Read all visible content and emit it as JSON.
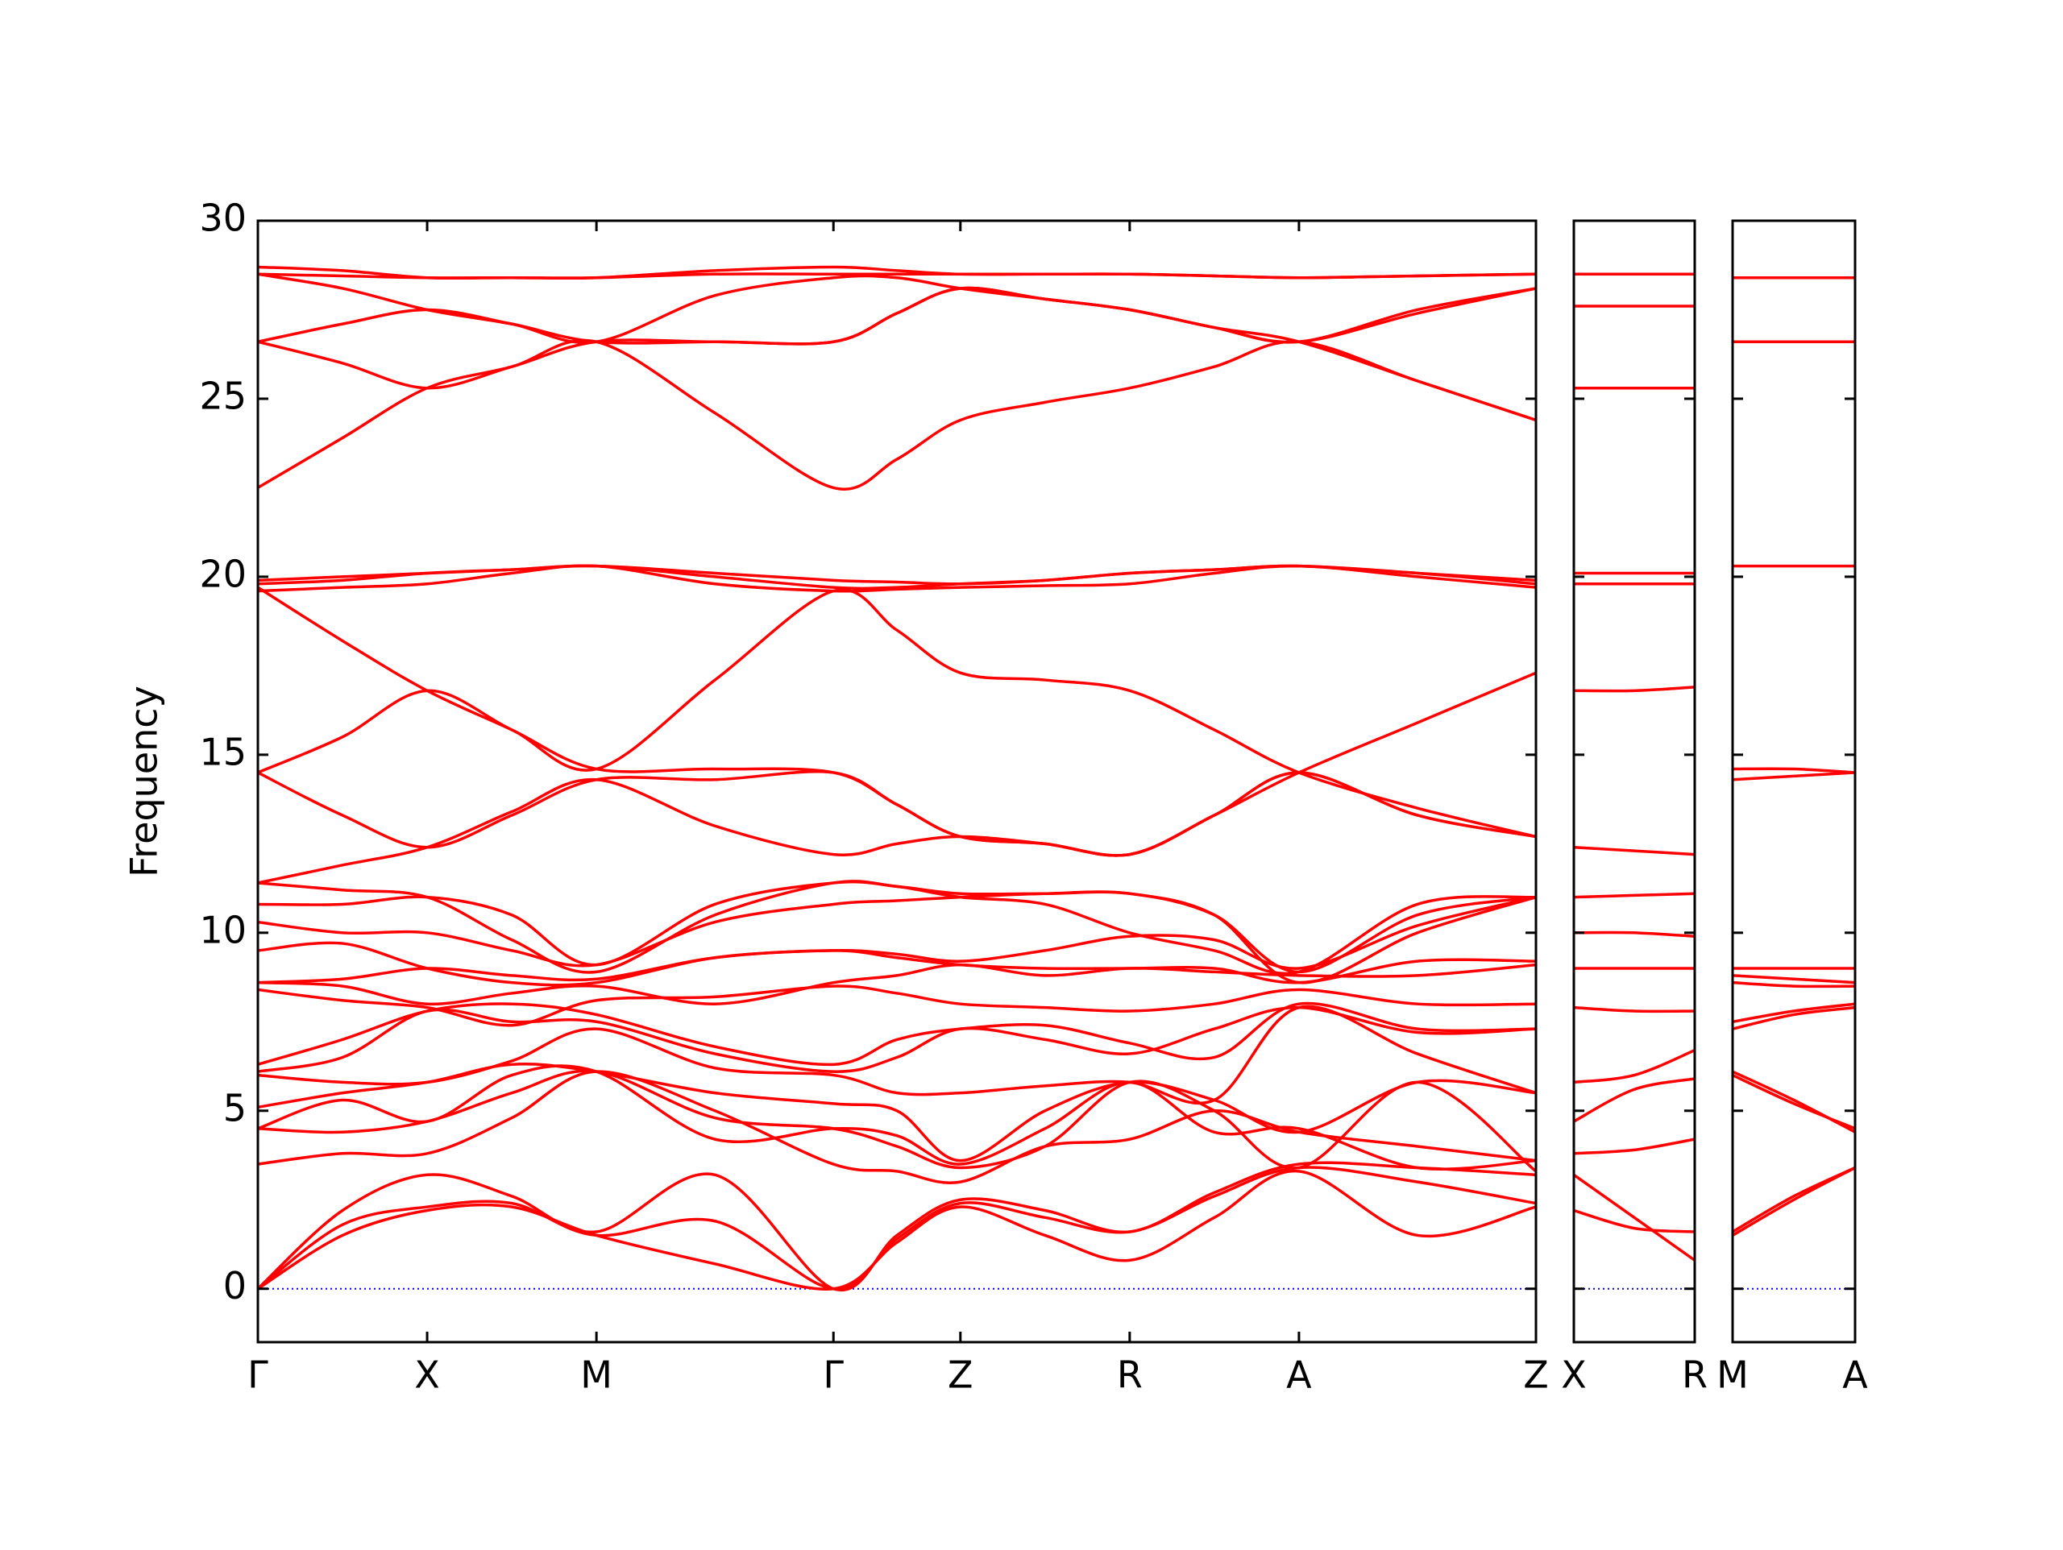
{
  "chart_data": [
    {
      "type": "line",
      "ylabel": "Frequency",
      "color": "#ff0000",
      "zero_line_color": "#0000ff",
      "xlim": [
        0,
        7.55
      ],
      "ylim": [
        -1.5,
        30
      ],
      "yticks": [
        0,
        5,
        10,
        15,
        20,
        25,
        30
      ],
      "ytick_labels": true,
      "xticks": [
        {
          "value": 0,
          "label": "Γ"
        },
        {
          "value": 1,
          "label": "X"
        },
        {
          "value": 2,
          "label": "M"
        },
        {
          "value": 3.4,
          "label": "Γ"
        },
        {
          "value": 4.15,
          "label": "Z"
        },
        {
          "value": 5.15,
          "label": "R"
        },
        {
          "value": 6.15,
          "label": "A"
        },
        {
          "value": 7.55,
          "label": "Z"
        }
      ],
      "x": [
        0,
        0.5,
        1,
        1.5,
        2,
        2.7,
        3.4,
        3.775,
        4.15,
        4.65,
        5.15,
        5.65,
        6.15,
        6.85,
        7.55
      ],
      "series": [
        {
          "values": [
            0,
            1.5,
            2.2,
            2.3,
            1.5,
            0.7,
            0,
            1.3,
            2.3,
            1.5,
            0.8,
            2.0,
            3.3,
            1.5,
            2.3
          ]
        },
        {
          "values": [
            0,
            1.8,
            2.3,
            2.4,
            1.5,
            1.9,
            0,
            1.4,
            2.4,
            2.0,
            1.6,
            2.6,
            3.4,
            3.0,
            2.4
          ]
        },
        {
          "values": [
            0,
            2.2,
            3.2,
            2.6,
            1.6,
            3.2,
            0,
            1.5,
            2.5,
            2.2,
            1.6,
            2.7,
            3.5,
            3.4,
            3.2
          ]
        },
        {
          "values": [
            3.5,
            3.8,
            3.8,
            4.8,
            6.1,
            5.0,
            3.5,
            3.3,
            3.0,
            4.0,
            4.2,
            5.0,
            4.4,
            4.0,
            3.6
          ]
        },
        {
          "values": [
            4.5,
            4.4,
            4.7,
            5.5,
            6.1,
            4.8,
            4.5,
            4.0,
            3.4,
            4.0,
            5.8,
            5.0,
            3.4,
            5.8,
            3.3
          ]
        },
        {
          "values": [
            4.5,
            5.3,
            4.7,
            6.0,
            6.1,
            4.2,
            4.5,
            4.3,
            3.5,
            4.5,
            5.8,
            4.4,
            4.5,
            3.4,
            3.6
          ]
        },
        {
          "values": [
            5.1,
            5.5,
            5.8,
            6.3,
            6.1,
            5.5,
            5.2,
            5.0,
            3.6,
            5.0,
            5.8,
            5.3,
            4.4,
            5.8,
            5.5
          ]
        },
        {
          "values": [
            6.0,
            5.8,
            5.8,
            6.4,
            7.3,
            6.2,
            6.0,
            5.5,
            5.5,
            5.7,
            5.8,
            5.3,
            7.9,
            6.6,
            5.5
          ]
        },
        {
          "values": [
            6.1,
            6.5,
            7.8,
            7.5,
            7.5,
            6.6,
            6.1,
            6.5,
            7.3,
            7.0,
            6.6,
            7.3,
            7.9,
            7.2,
            7.3
          ]
        },
        {
          "values": [
            6.3,
            7.0,
            7.8,
            8.0,
            7.7,
            6.8,
            6.3,
            7.0,
            7.3,
            7.4,
            6.9,
            6.5,
            8.0,
            7.3,
            7.3
          ]
        },
        {
          "values": [
            8.4,
            8.1,
            7.9,
            7.4,
            8.1,
            8.2,
            8.5,
            8.3,
            8.0,
            7.9,
            7.8,
            8.0,
            8.4,
            8.0,
            8.0
          ]
        },
        {
          "values": [
            8.6,
            8.5,
            8.0,
            8.3,
            8.5,
            8.0,
            8.6,
            8.8,
            9.1,
            8.8,
            9.0,
            8.9,
            8.8,
            8.8,
            9.1
          ]
        },
        {
          "values": [
            8.6,
            8.7,
            9.0,
            8.8,
            8.7,
            9.3,
            9.5,
            9.3,
            9.1,
            9.0,
            9.0,
            9.0,
            8.6,
            9.2,
            9.2
          ]
        },
        {
          "values": [
            9.5,
            9.7,
            9.0,
            8.6,
            8.6,
            9.3,
            9.5,
            9.4,
            9.2,
            9.5,
            9.9,
            9.8,
            9.0,
            10.2,
            11.0
          ]
        },
        {
          "values": [
            10.3,
            10.0,
            10.0,
            9.5,
            9.1,
            10.3,
            10.8,
            10.9,
            11.0,
            11.1,
            11.1,
            10.5,
            8.9,
            10.5,
            11.0
          ]
        },
        {
          "values": [
            10.8,
            10.8,
            11.0,
            10.5,
            9.1,
            10.8,
            11.4,
            11.3,
            11.0,
            10.8,
            10.0,
            9.5,
            8.9,
            10.8,
            11.0
          ]
        },
        {
          "values": [
            11.4,
            11.2,
            11.0,
            9.8,
            8.9,
            10.5,
            11.4,
            11.3,
            11.1,
            11.1,
            11.1,
            10.5,
            8.6,
            10.0,
            11.0
          ]
        },
        {
          "values": [
            11.4,
            11.9,
            12.4,
            13.4,
            14.3,
            13.0,
            12.2,
            12.5,
            12.7,
            12.5,
            12.2,
            13.3,
            14.5,
            13.3,
            12.7
          ]
        },
        {
          "values": [
            14.5,
            13.3,
            12.4,
            13.3,
            14.3,
            14.3,
            14.5,
            13.6,
            12.7,
            12.5,
            12.2,
            13.3,
            14.5,
            13.3,
            12.7
          ]
        },
        {
          "values": [
            14.5,
            15.5,
            16.8,
            15.7,
            14.6,
            14.6,
            14.5,
            13.6,
            12.7,
            12.5,
            12.2,
            13.3,
            14.5,
            15.9,
            17.3
          ]
        },
        {
          "values": [
            19.7,
            18.2,
            16.8,
            15.7,
            14.6,
            17.1,
            19.6,
            18.5,
            17.3,
            17.1,
            16.8,
            15.7,
            14.5,
            13.5,
            12.7
          ]
        },
        {
          "values": [
            19.6,
            19.7,
            19.8,
            20.1,
            20.3,
            19.8,
            19.6,
            19.65,
            19.7,
            19.75,
            19.8,
            20.1,
            20.3,
            20.0,
            19.7
          ]
        },
        {
          "values": [
            19.8,
            19.9,
            20.1,
            20.2,
            20.3,
            20.0,
            19.7,
            19.7,
            19.8,
            19.9,
            20.1,
            20.2,
            20.3,
            20.1,
            19.8
          ]
        },
        {
          "values": [
            19.9,
            20.0,
            20.1,
            20.2,
            20.3,
            20.1,
            19.9,
            19.85,
            19.8,
            19.9,
            20.1,
            20.2,
            20.3,
            20.1,
            19.9
          ]
        },
        {
          "values": [
            22.5,
            23.9,
            25.3,
            25.9,
            26.6,
            24.6,
            22.5,
            23.3,
            24.4,
            24.9,
            25.3,
            25.9,
            26.6,
            25.5,
            24.4
          ]
        },
        {
          "values": [
            26.6,
            26.0,
            25.3,
            25.9,
            26.6,
            26.6,
            26.6,
            27.4,
            28.1,
            27.8,
            27.5,
            27.0,
            26.6,
            27.4,
            28.1
          ]
        },
        {
          "values": [
            26.6,
            27.1,
            27.5,
            27.1,
            26.6,
            27.9,
            28.4,
            28.4,
            28.1,
            27.8,
            27.5,
            27.0,
            26.6,
            27.5,
            28.1
          ]
        },
        {
          "values": [
            28.5,
            28.1,
            27.5,
            27.1,
            26.6,
            26.6,
            26.6,
            27.4,
            28.1,
            27.8,
            27.5,
            27.0,
            26.6,
            25.5,
            24.4
          ]
        },
        {
          "values": [
            28.5,
            28.45,
            28.4,
            28.4,
            28.4,
            28.5,
            28.5,
            28.5,
            28.5,
            28.5,
            28.5,
            28.45,
            28.4,
            28.45,
            28.5
          ]
        },
        {
          "values": [
            28.7,
            28.6,
            28.4,
            28.4,
            28.4,
            28.6,
            28.7,
            28.6,
            28.5,
            28.5,
            28.5,
            28.45,
            28.4,
            28.45,
            28.5
          ]
        }
      ]
    },
    {
      "type": "line",
      "color": "#ff0000",
      "zero_line_color": "#0000ff",
      "xlim": [
        0,
        0.71
      ],
      "ylim": [
        -1.5,
        30
      ],
      "yticks": [
        0,
        5,
        10,
        15,
        20,
        25,
        30
      ],
      "ytick_labels": false,
      "xticks": [
        {
          "value": 0,
          "label": "X"
        },
        {
          "value": 0.71,
          "label": "R"
        }
      ],
      "x": [
        0,
        0.355,
        0.71
      ],
      "series": [
        {
          "values": [
            28.5,
            28.5,
            28.5
          ]
        },
        {
          "values": [
            27.6,
            27.6,
            27.6
          ]
        },
        {
          "values": [
            25.3,
            25.3,
            25.3
          ]
        },
        {
          "values": [
            20.1,
            20.1,
            20.1
          ]
        },
        {
          "values": [
            19.8,
            19.8,
            19.8
          ]
        },
        {
          "values": [
            16.8,
            16.8,
            16.9
          ]
        },
        {
          "values": [
            12.4,
            12.3,
            12.2
          ]
        },
        {
          "values": [
            11.0,
            11.05,
            11.1
          ]
        },
        {
          "values": [
            10.0,
            10.0,
            9.9
          ]
        },
        {
          "values": [
            9.0,
            9.0,
            9.0
          ]
        },
        {
          "values": [
            7.9,
            7.8,
            7.8
          ]
        },
        {
          "values": [
            5.8,
            6.0,
            6.7
          ]
        },
        {
          "values": [
            4.7,
            5.6,
            5.9
          ]
        },
        {
          "values": [
            3.8,
            3.9,
            4.2
          ]
        },
        {
          "values": [
            3.2,
            2.0,
            0.8
          ]
        },
        {
          "values": [
            2.2,
            1.7,
            1.6
          ]
        }
      ]
    },
    {
      "type": "line",
      "color": "#ff0000",
      "zero_line_color": "#0000ff",
      "xlim": [
        0,
        0.72
      ],
      "ylim": [
        -1.5,
        30
      ],
      "yticks": [
        0,
        5,
        10,
        15,
        20,
        25,
        30
      ],
      "ytick_labels": false,
      "xticks": [
        {
          "value": 0,
          "label": "M"
        },
        {
          "value": 0.72,
          "label": "A"
        }
      ],
      "x": [
        0,
        0.36,
        0.72
      ],
      "series": [
        {
          "values": [
            28.4,
            28.4,
            28.4
          ]
        },
        {
          "values": [
            26.6,
            26.6,
            26.6
          ]
        },
        {
          "values": [
            20.3,
            20.3,
            20.3
          ]
        },
        {
          "values": [
            14.6,
            14.6,
            14.5
          ]
        },
        {
          "values": [
            14.3,
            14.4,
            14.5
          ]
        },
        {
          "values": [
            9.0,
            9.0,
            9.0
          ]
        },
        {
          "values": [
            8.8,
            8.7,
            8.6
          ]
        },
        {
          "values": [
            8.6,
            8.5,
            8.5
          ]
        },
        {
          "values": [
            7.5,
            7.8,
            8.0
          ]
        },
        {
          "values": [
            7.3,
            7.7,
            7.9
          ]
        },
        {
          "values": [
            6.1,
            5.3,
            4.4
          ]
        },
        {
          "values": [
            6.0,
            5.2,
            4.5
          ]
        },
        {
          "values": [
            1.6,
            2.6,
            3.4
          ]
        },
        {
          "values": [
            1.5,
            2.5,
            3.4
          ]
        }
      ]
    }
  ]
}
